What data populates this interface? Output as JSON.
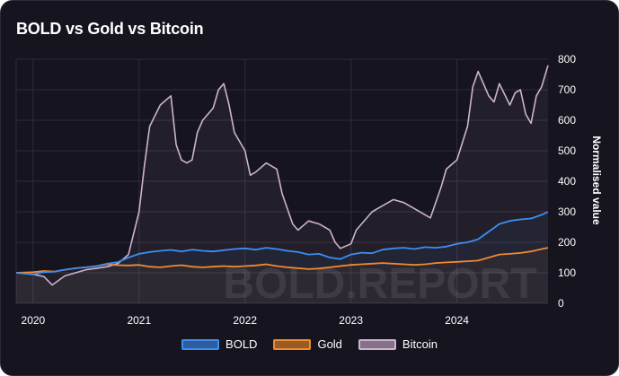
{
  "title": "BOLD vs Gold vs Bitcoin",
  "watermark": "BOLD.REPORT",
  "colors": {
    "background": "#15141f",
    "grid": "#2e2d3c",
    "text": "#ffffff",
    "BOLD": "#3d8ef0",
    "Gold": "#f28a2e",
    "Bitcoin": "#cfb2cf"
  },
  "chart_data": {
    "type": "line",
    "title": "BOLD vs Gold vs Bitcoin",
    "xlabel": "",
    "ylabel": "Normalised value",
    "y_axis_position": "right",
    "xlim": [
      2019.84,
      2024.86
    ],
    "ylim": [
      0,
      800
    ],
    "x_ticks": [
      2020,
      2021,
      2022,
      2023,
      2024
    ],
    "x_tick_labels": [
      "2020",
      "2021",
      "2022",
      "2023",
      "2024"
    ],
    "y_ticks": [
      0,
      100,
      200,
      300,
      400,
      500,
      600,
      700,
      800
    ],
    "y_tick_labels": [
      "0",
      "100",
      "200",
      "300",
      "400",
      "500",
      "600",
      "700",
      "800"
    ],
    "grid": true,
    "legend_position": "bottom-center",
    "series": [
      {
        "name": "BOLD",
        "color": "#3d8ef0",
        "x": [
          2019.84,
          2020.0,
          2020.1,
          2020.2,
          2020.3,
          2020.4,
          2020.5,
          2020.6,
          2020.7,
          2020.8,
          2020.9,
          2021.0,
          2021.1,
          2021.2,
          2021.3,
          2021.4,
          2021.5,
          2021.6,
          2021.7,
          2021.8,
          2021.9,
          2022.0,
          2022.1,
          2022.2,
          2022.3,
          2022.4,
          2022.5,
          2022.6,
          2022.7,
          2022.8,
          2022.9,
          2023.0,
          2023.1,
          2023.2,
          2023.3,
          2023.4,
          2023.5,
          2023.6,
          2023.7,
          2023.8,
          2023.9,
          2024.0,
          2024.1,
          2024.2,
          2024.3,
          2024.4,
          2024.5,
          2024.6,
          2024.7,
          2024.8,
          2024.86
        ],
        "values": [
          100,
          95,
          102,
          104,
          110,
          115,
          118,
          122,
          130,
          135,
          150,
          162,
          168,
          172,
          175,
          170,
          176,
          172,
          170,
          174,
          178,
          180,
          176,
          182,
          178,
          172,
          168,
          160,
          162,
          150,
          145,
          160,
          166,
          164,
          176,
          180,
          182,
          178,
          184,
          182,
          186,
          195,
          200,
          210,
          235,
          260,
          270,
          275,
          278,
          290,
          300
        ]
      },
      {
        "name": "Gold",
        "color": "#f28a2e",
        "x": [
          2019.84,
          2020.0,
          2020.1,
          2020.2,
          2020.3,
          2020.4,
          2020.5,
          2020.6,
          2020.7,
          2020.8,
          2020.9,
          2021.0,
          2021.1,
          2021.2,
          2021.3,
          2021.4,
          2021.5,
          2021.6,
          2021.7,
          2021.8,
          2021.9,
          2022.0,
          2022.1,
          2022.2,
          2022.3,
          2022.4,
          2022.5,
          2022.6,
          2022.7,
          2022.8,
          2022.9,
          2023.0,
          2023.1,
          2023.2,
          2023.3,
          2023.4,
          2023.5,
          2023.6,
          2023.7,
          2023.8,
          2023.9,
          2024.0,
          2024.1,
          2024.2,
          2024.3,
          2024.4,
          2024.5,
          2024.6,
          2024.7,
          2024.8,
          2024.86
        ],
        "values": [
          100,
          102,
          106,
          104,
          110,
          115,
          118,
          122,
          128,
          125,
          124,
          126,
          120,
          118,
          122,
          125,
          120,
          118,
          120,
          122,
          120,
          122,
          124,
          128,
          122,
          118,
          115,
          112,
          114,
          118,
          122,
          126,
          128,
          130,
          132,
          130,
          128,
          126,
          128,
          132,
          134,
          136,
          138,
          140,
          150,
          160,
          162,
          165,
          170,
          178,
          182
        ]
      },
      {
        "name": "Bitcoin",
        "color": "#cfb2cf",
        "x": [
          2019.84,
          2020.0,
          2020.1,
          2020.18,
          2020.3,
          2020.4,
          2020.5,
          2020.6,
          2020.7,
          2020.8,
          2020.9,
          2021.0,
          2021.05,
          2021.1,
          2021.2,
          2021.3,
          2021.35,
          2021.4,
          2021.45,
          2021.5,
          2021.55,
          2021.6,
          2021.7,
          2021.75,
          2021.8,
          2021.85,
          2021.9,
          2022.0,
          2022.05,
          2022.1,
          2022.2,
          2022.3,
          2022.35,
          2022.4,
          2022.45,
          2022.5,
          2022.6,
          2022.7,
          2022.8,
          2022.85,
          2022.9,
          2023.0,
          2023.05,
          2023.1,
          2023.2,
          2023.25,
          2023.3,
          2023.4,
          2023.5,
          2023.6,
          2023.7,
          2023.75,
          2023.8,
          2023.85,
          2023.9,
          2024.0,
          2024.1,
          2024.15,
          2024.2,
          2024.25,
          2024.3,
          2024.35,
          2024.4,
          2024.5,
          2024.55,
          2024.6,
          2024.65,
          2024.7,
          2024.75,
          2024.8,
          2024.86
        ],
        "values": [
          100,
          95,
          88,
          60,
          90,
          100,
          110,
          115,
          120,
          130,
          160,
          300,
          450,
          580,
          650,
          680,
          520,
          470,
          460,
          470,
          560,
          600,
          640,
          700,
          720,
          650,
          560,
          500,
          420,
          430,
          460,
          440,
          360,
          310,
          260,
          240,
          270,
          260,
          240,
          200,
          180,
          195,
          240,
          260,
          300,
          310,
          320,
          340,
          330,
          310,
          290,
          280,
          330,
          380,
          440,
          470,
          580,
          710,
          760,
          720,
          680,
          660,
          720,
          650,
          690,
          700,
          620,
          590,
          680,
          710,
          780
        ]
      }
    ]
  }
}
